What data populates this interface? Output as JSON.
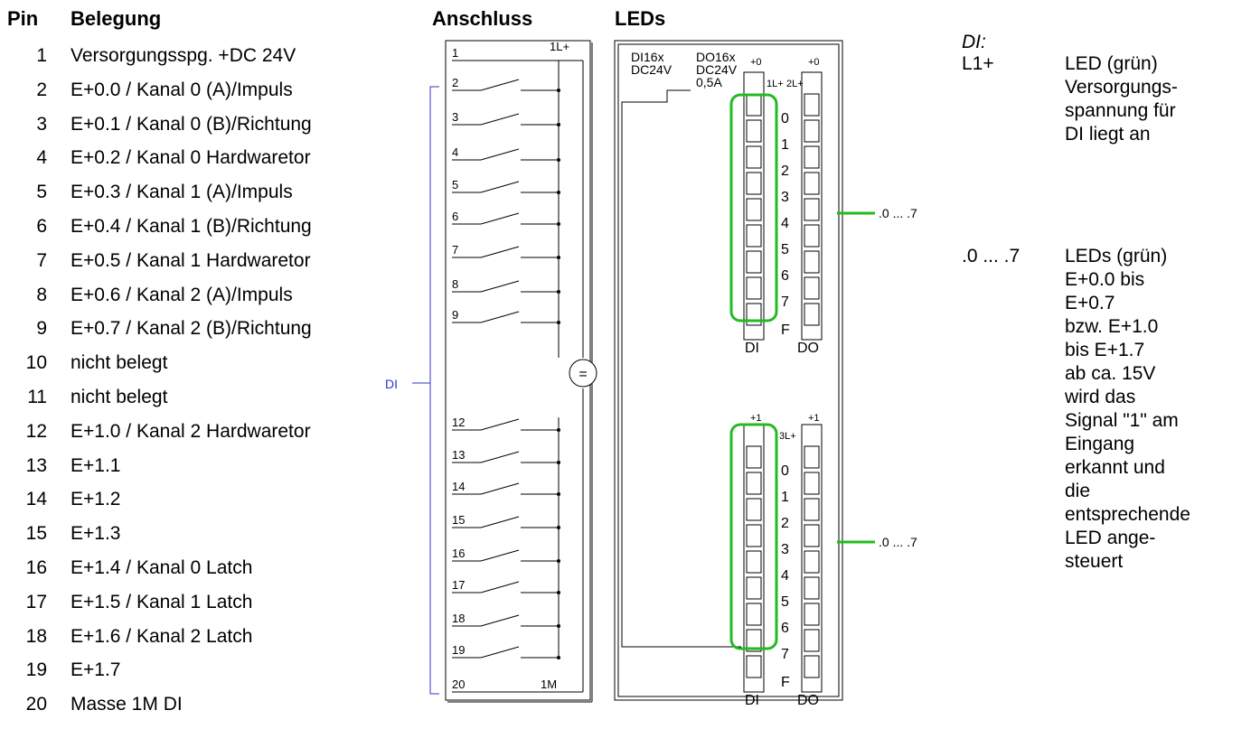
{
  "headers": {
    "pin": "Pin",
    "belegung": "Belegung",
    "anschluss": "Anschluss",
    "leds": "LEDs"
  },
  "pins": [
    {
      "num": "1",
      "label": "Versorgungsspg. +DC 24V"
    },
    {
      "num": "2",
      "label": "E+0.0 / Kanal 0 (A)/Impuls"
    },
    {
      "num": "3",
      "label": "E+0.1 / Kanal 0 (B)/Richtung"
    },
    {
      "num": "4",
      "label": "E+0.2 / Kanal 0 Hardwaretor"
    },
    {
      "num": "5",
      "label": "E+0.3 / Kanal 1 (A)/Impuls"
    },
    {
      "num": "6",
      "label": "E+0.4 / Kanal 1 (B)/Richtung"
    },
    {
      "num": "7",
      "label": "E+0.5 / Kanal 1 Hardwaretor"
    },
    {
      "num": "8",
      "label": "E+0.6 / Kanal 2 (A)/Impuls"
    },
    {
      "num": "9",
      "label": "E+0.7 / Kanal 2 (B)/Richtung"
    },
    {
      "num": "10",
      "label": "nicht belegt"
    },
    {
      "num": "11",
      "label": "nicht belegt"
    },
    {
      "num": "12",
      "label": "E+1.0 / Kanal 2 Hardwaretor"
    },
    {
      "num": "13",
      "label": "E+1.1"
    },
    {
      "num": "14",
      "label": "E+1.2"
    },
    {
      "num": "15",
      "label": "E+1.3"
    },
    {
      "num": "16",
      "label": "E+1.4 / Kanal 0 Latch"
    },
    {
      "num": "17",
      "label": "E+1.5 / Kanal 1 Latch"
    },
    {
      "num": "18",
      "label": "E+1.6 / Kanal 2 Latch"
    },
    {
      "num": "19",
      "label": "E+1.7"
    },
    {
      "num": "20",
      "label": "Masse 1M DI"
    }
  ],
  "schematic": {
    "di_label": "DI",
    "supply_label": "1L+",
    "ground_label": "1M",
    "source_symbol": "=",
    "terminals": [
      "1",
      "2",
      "3",
      "4",
      "5",
      "6",
      "7",
      "8",
      "9",
      "12",
      "13",
      "14",
      "15",
      "16",
      "17",
      "18",
      "19",
      "20"
    ]
  },
  "module": {
    "di_line1": "DI16x",
    "di_line2": "DC24V",
    "do_line1": "DO16x",
    "do_line2": "DC24V",
    "do_line3": "0,5A",
    "top_di_addr": "+0",
    "top_do_addr": "+0",
    "bot_di_addr": "+1",
    "bot_do_addr": "+1",
    "top_supply_1": "1L+",
    "top_supply_2": "2L+",
    "bot_supply": "3L+",
    "digits": [
      "0",
      "1",
      "2",
      "3",
      "4",
      "5",
      "6",
      "7"
    ],
    "f_label": "F",
    "di_col": "DI",
    "do_col": "DO",
    "range_label": ".0 ... .7"
  },
  "legend": {
    "di_title": "DI:",
    "l1_key": "L1+",
    "l1_lines": [
      "LED (grün)",
      "Versorgungs-",
      "spannung für",
      "DI liegt an"
    ],
    "range_key": ".0 ... .7",
    "range_lines": [
      "LEDs (grün)",
      "E+0.0 bis",
      "E+0.7",
      "bzw. E+1.0",
      "bis E+1.7",
      "ab ca. 15V",
      "wird das",
      "Signal \"1\" am",
      "Eingang",
      "erkannt und",
      "die",
      "entsprechende",
      "LED ange-",
      "steuert"
    ]
  },
  "colors": {
    "highlight": "#22bb22",
    "di_bracket": "#3333cc"
  }
}
